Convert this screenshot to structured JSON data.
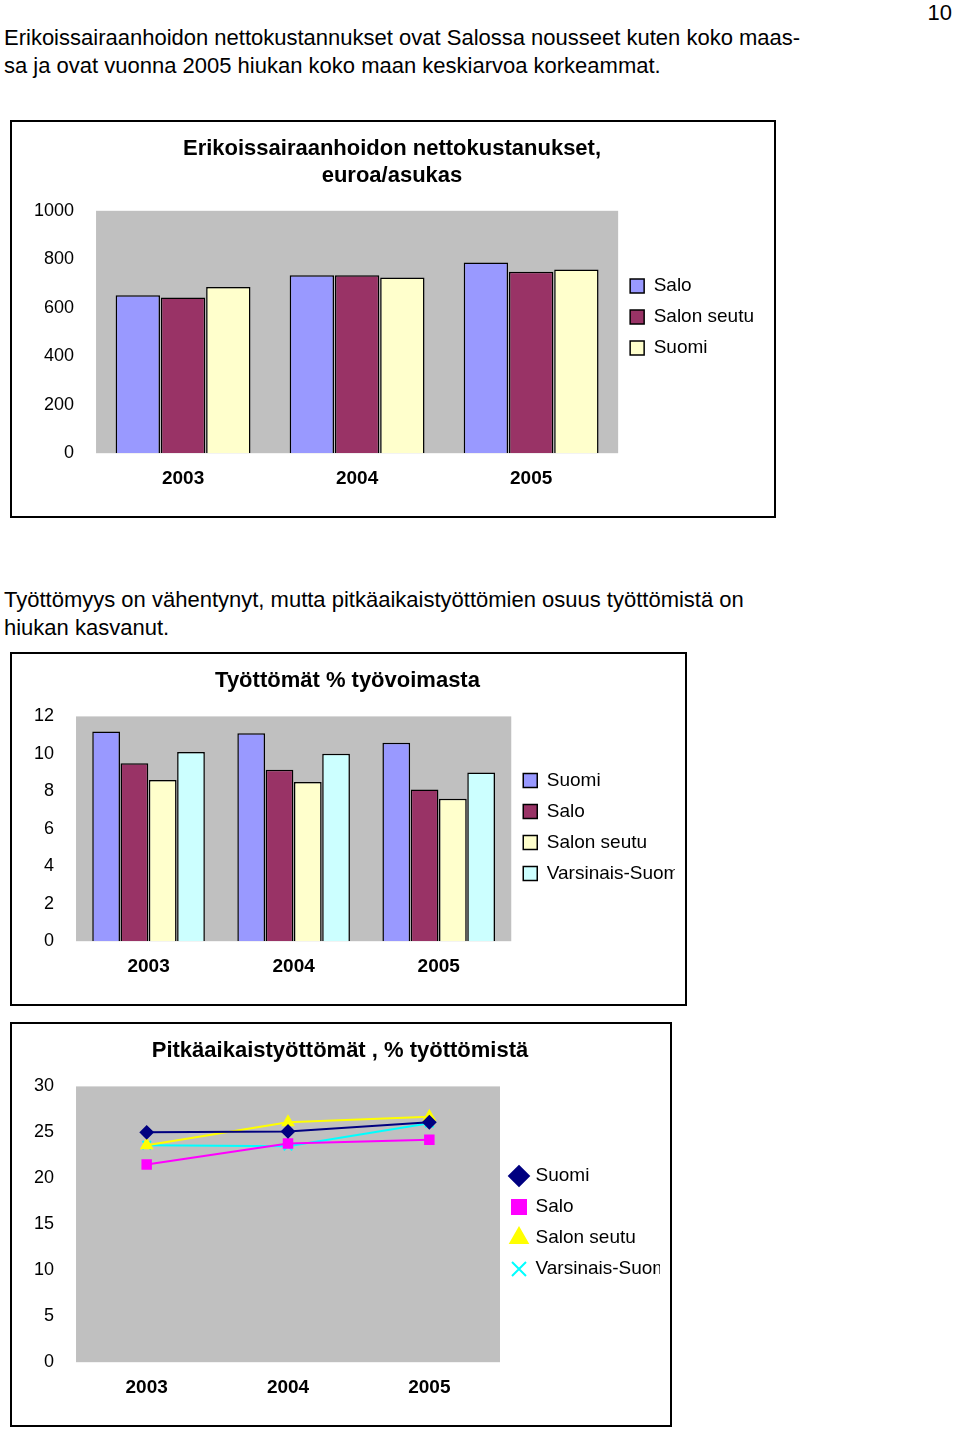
{
  "page_number": 10,
  "paragraphs": [
    [
      "Erikoissairaanhoidon nettokustannukset ovat Salossa nousseet kuten koko maas-",
      "sa ja ovat vuonna 2005 hiukan koko maan keskiarvoa korkeammat."
    ],
    [
      "Työttömyys on vähentynyt, mutta pitkäaikaistyöttömien osuus työttömistä on",
      "hiukan kasvanut."
    ]
  ],
  "chart_data": [
    {
      "type": "bar",
      "title": [
        "Erikoissairaanhoidon nettokustanukset,",
        "euroa/asukas"
      ],
      "categories": [
        "2003",
        "2004",
        "2005"
      ],
      "series": [
        {
          "name": "Salo",
          "color": "#9999ff",
          "values": [
            652,
            734,
            787
          ]
        },
        {
          "name": "Salon seutu",
          "color": "#993366",
          "values": [
            642,
            734,
            749
          ]
        },
        {
          "name": "Suomi",
          "color": "#ffffcc",
          "values": [
            686,
            725,
            758
          ]
        }
      ],
      "ylim": [
        0,
        1000
      ],
      "yticks": [
        0,
        200,
        400,
        600,
        800,
        1000
      ],
      "grid": false,
      "legend": "right"
    },
    {
      "type": "bar",
      "title": "Työttömät % työvoimasta",
      "categories": [
        "2003",
        "2004",
        "2005"
      ],
      "series": [
        {
          "name": "Suomi",
          "color": "#9999ff",
          "values": [
            11.2,
            11.1,
            10.6
          ]
        },
        {
          "name": "Salo",
          "color": "#993366",
          "values": [
            9.5,
            9.15,
            8.1
          ]
        },
        {
          "name": "Salon seutu",
          "color": "#ffffcc",
          "values": [
            8.6,
            8.5,
            7.6
          ]
        },
        {
          "name": "Varsinais-Suomi",
          "color": "#ccffff",
          "values": [
            10.1,
            10.0,
            9.0
          ]
        }
      ],
      "ylim": [
        0,
        12
      ],
      "yticks": [
        0,
        2,
        4,
        6,
        8,
        10,
        12
      ],
      "grid": false,
      "legend": "right"
    },
    {
      "type": "line",
      "title": "Pitkäaikaistyöttömät , % työttömistä",
      "categories": [
        "2003",
        "2004",
        "2005"
      ],
      "series": [
        {
          "name": "Suomi",
          "color": "#000080",
          "marker": "diamond",
          "values": [
            25.0,
            25.1,
            26.1
          ]
        },
        {
          "name": "Salo",
          "color": "#ff00ff",
          "marker": "square",
          "values": [
            21.5,
            23.8,
            24.2
          ]
        },
        {
          "name": "Salon seutu",
          "color": "#ffff00",
          "marker": "triangle",
          "values": [
            23.6,
            26.1,
            26.7
          ]
        },
        {
          "name": "Varsinais-Suomi",
          "color": "#00ffff",
          "marker": "x",
          "values": [
            23.6,
            23.5,
            26.0
          ]
        }
      ],
      "ylim": [
        0,
        30
      ],
      "yticks": [
        0,
        5,
        10,
        15,
        20,
        25,
        30
      ],
      "grid": false,
      "legend": "right"
    }
  ]
}
